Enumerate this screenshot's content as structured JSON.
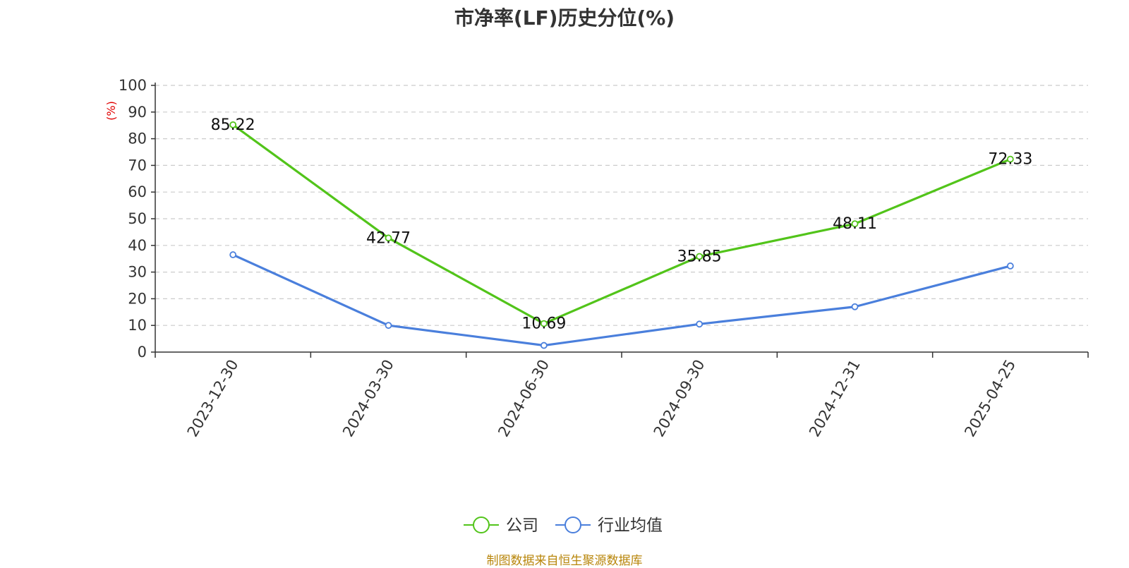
{
  "chart_data": {
    "type": "line",
    "title": "市净率(LF)历史分位(%)",
    "ylabel": "(%)",
    "xlabel": "",
    "ylim": [
      0,
      100
    ],
    "yticks": [
      0,
      10,
      20,
      30,
      40,
      50,
      60,
      70,
      80,
      90,
      100
    ],
    "categories": [
      "2023-12-30",
      "2024-03-30",
      "2024-06-30",
      "2024-09-30",
      "2024-12-31",
      "2025-04-25"
    ],
    "series": [
      {
        "name": "公司",
        "values": [
          85.22,
          42.77,
          10.69,
          35.85,
          48.11,
          72.33
        ],
        "color": "#52c41a",
        "labels": [
          "85.22",
          "42.77",
          "10.69",
          "35.85",
          "48.11",
          "72.33"
        ]
      },
      {
        "name": "行业均值",
        "values": [
          36.5,
          10.0,
          2.5,
          10.5,
          17.0,
          32.3
        ],
        "color": "#4a7fdc"
      }
    ],
    "grid": true,
    "legend_position": "bottom-center"
  },
  "source_text": "制图数据来自恒生聚源数据库"
}
